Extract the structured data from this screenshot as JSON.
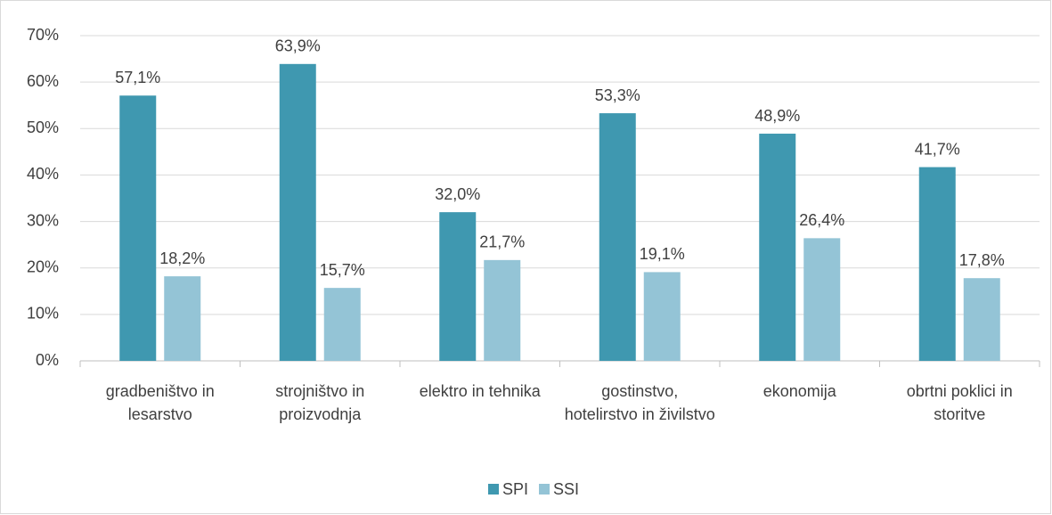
{
  "chart_data": {
    "type": "bar",
    "categories": [
      "gradbeništvo in lesarstvo",
      "strojništvo in proizvodnja",
      "elektro in tehnika",
      "gostinstvo, hotelirstvo in živilstvo",
      "ekonomija",
      "obrtni poklici in storitve"
    ],
    "series": [
      {
        "name": "SPI",
        "color": "#3f98b0",
        "values": [
          57.1,
          63.9,
          32.0,
          53.3,
          48.9,
          41.7
        ],
        "value_labels": [
          "57,1%",
          "63,9%",
          "32,0%",
          "53,3%",
          "48,9%",
          "41,7%"
        ]
      },
      {
        "name": "SSI",
        "color": "#94c4d6",
        "values": [
          18.2,
          15.7,
          21.7,
          19.1,
          26.4,
          17.8
        ],
        "value_labels": [
          "18,2%",
          "15,7%",
          "21,7%",
          "19,1%",
          "26,4%",
          "17,8%"
        ]
      }
    ],
    "ylim": [
      0,
      70
    ],
    "yticks": [
      {
        "value": 0,
        "label": "0%"
      },
      {
        "value": 10,
        "label": "10%"
      },
      {
        "value": 20,
        "label": "20%"
      },
      {
        "value": 30,
        "label": "30%"
      },
      {
        "value": 40,
        "label": "40%"
      },
      {
        "value": 50,
        "label": "50%"
      },
      {
        "value": 60,
        "label": "60%"
      },
      {
        "value": 70,
        "label": "70%"
      }
    ],
    "grid": true,
    "legend": "bottom"
  }
}
